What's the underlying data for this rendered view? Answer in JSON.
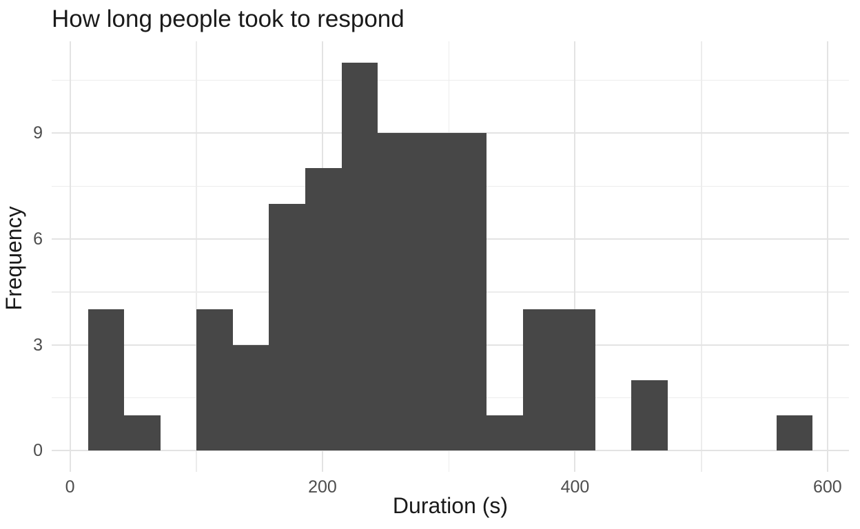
{
  "title": "How long people took to respond",
  "chart_data": {
    "type": "bar",
    "subtype": "histogram",
    "title": "How long people took to respond",
    "xlabel": "Duration (s)",
    "ylabel": "Frequency",
    "bin_edges": [
      14.2,
      42.9,
      71.6,
      100.3,
      129.0,
      157.7,
      186.4,
      215.1,
      243.8,
      272.5,
      301.2,
      329.9,
      358.6,
      387.3,
      416.0,
      444.7,
      473.4,
      502.1,
      530.8,
      559.5,
      588.2
    ],
    "counts": [
      4,
      1,
      0,
      4,
      3,
      7,
      8,
      11,
      9,
      9,
      9,
      1,
      4,
      4,
      0,
      2,
      0,
      0,
      0,
      1
    ],
    "n_total": 77,
    "bin_width": 28.7,
    "x_ticks": [
      0,
      200,
      400,
      600
    ],
    "y_ticks": [
      0,
      3,
      6,
      9
    ],
    "x_minor_gridlines": [
      100,
      300,
      500
    ],
    "y_minor_gridlines": [
      1.5,
      4.5,
      7.5,
      10.5
    ],
    "xlim": [
      -14.5,
      617.0
    ],
    "ylim": [
      -0.6,
      11.6
    ],
    "grid": "on",
    "legend": "none",
    "colors": {
      "bar_fill": "#474747",
      "background": "#ffffff",
      "major_grid": "#e3e3e3",
      "minor_grid": "#ececec",
      "tick_label": "#4d4d4d",
      "text": "#1a1a1a"
    }
  }
}
